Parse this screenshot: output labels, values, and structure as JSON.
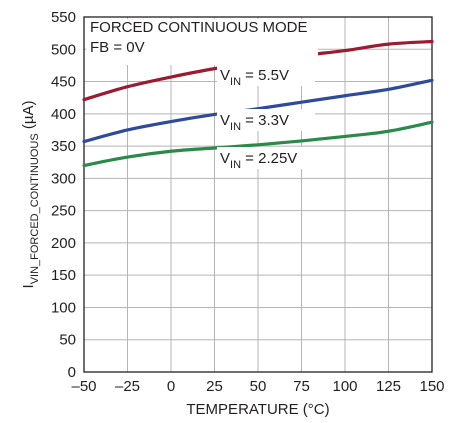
{
  "chart_data": {
    "type": "line",
    "xlabel": "TEMPERATURE (°C)",
    "ylabel": {
      "main": "I",
      "sub": "VIN_FORCED_CONTINUOUS",
      "unit": " (µA)"
    },
    "xlim": [
      -50,
      150
    ],
    "ylim": [
      0,
      550
    ],
    "xticks": [
      -50,
      -25,
      0,
      25,
      50,
      75,
      100,
      125,
      150
    ],
    "yticks": [
      0,
      50,
      100,
      150,
      200,
      250,
      300,
      350,
      400,
      450,
      500,
      550
    ],
    "xtick_labels": [
      "–50",
      "–25",
      "0",
      "25",
      "50",
      "75",
      "100",
      "125",
      "150"
    ],
    "ytick_labels": [
      "0",
      "50",
      "100",
      "150",
      "200",
      "250",
      "300",
      "350",
      "400",
      "450",
      "500",
      "550"
    ],
    "grid": true,
    "annotations": [
      "FORCED CONTINUOUS MODE",
      "FB = 0V"
    ],
    "series": [
      {
        "label_main": "V",
        "label_sub": "IN",
        "label_rest": " = 5.5V",
        "color": "#9b1b30",
        "x": [
          -50,
          -25,
          0,
          25,
          50,
          75,
          100,
          125,
          150
        ],
        "y": [
          422,
          442,
          457,
          470,
          480,
          490,
          498,
          508,
          512
        ]
      },
      {
        "label_main": "V",
        "label_sub": "IN",
        "label_rest": " = 3.3V",
        "color": "#2e4a9a",
        "x": [
          -50,
          -25,
          0,
          25,
          50,
          75,
          100,
          125,
          150
        ],
        "y": [
          357,
          375,
          388,
          399,
          408,
          418,
          428,
          438,
          452
        ]
      },
      {
        "label_main": "V",
        "label_sub": "IN",
        "label_rest": " = 2.25V",
        "color": "#2a8a4a",
        "x": [
          -50,
          -25,
          0,
          25,
          50,
          75,
          100,
          125,
          150
        ],
        "y": [
          320,
          333,
          342,
          347,
          352,
          358,
          365,
          373,
          387
        ]
      }
    ]
  }
}
